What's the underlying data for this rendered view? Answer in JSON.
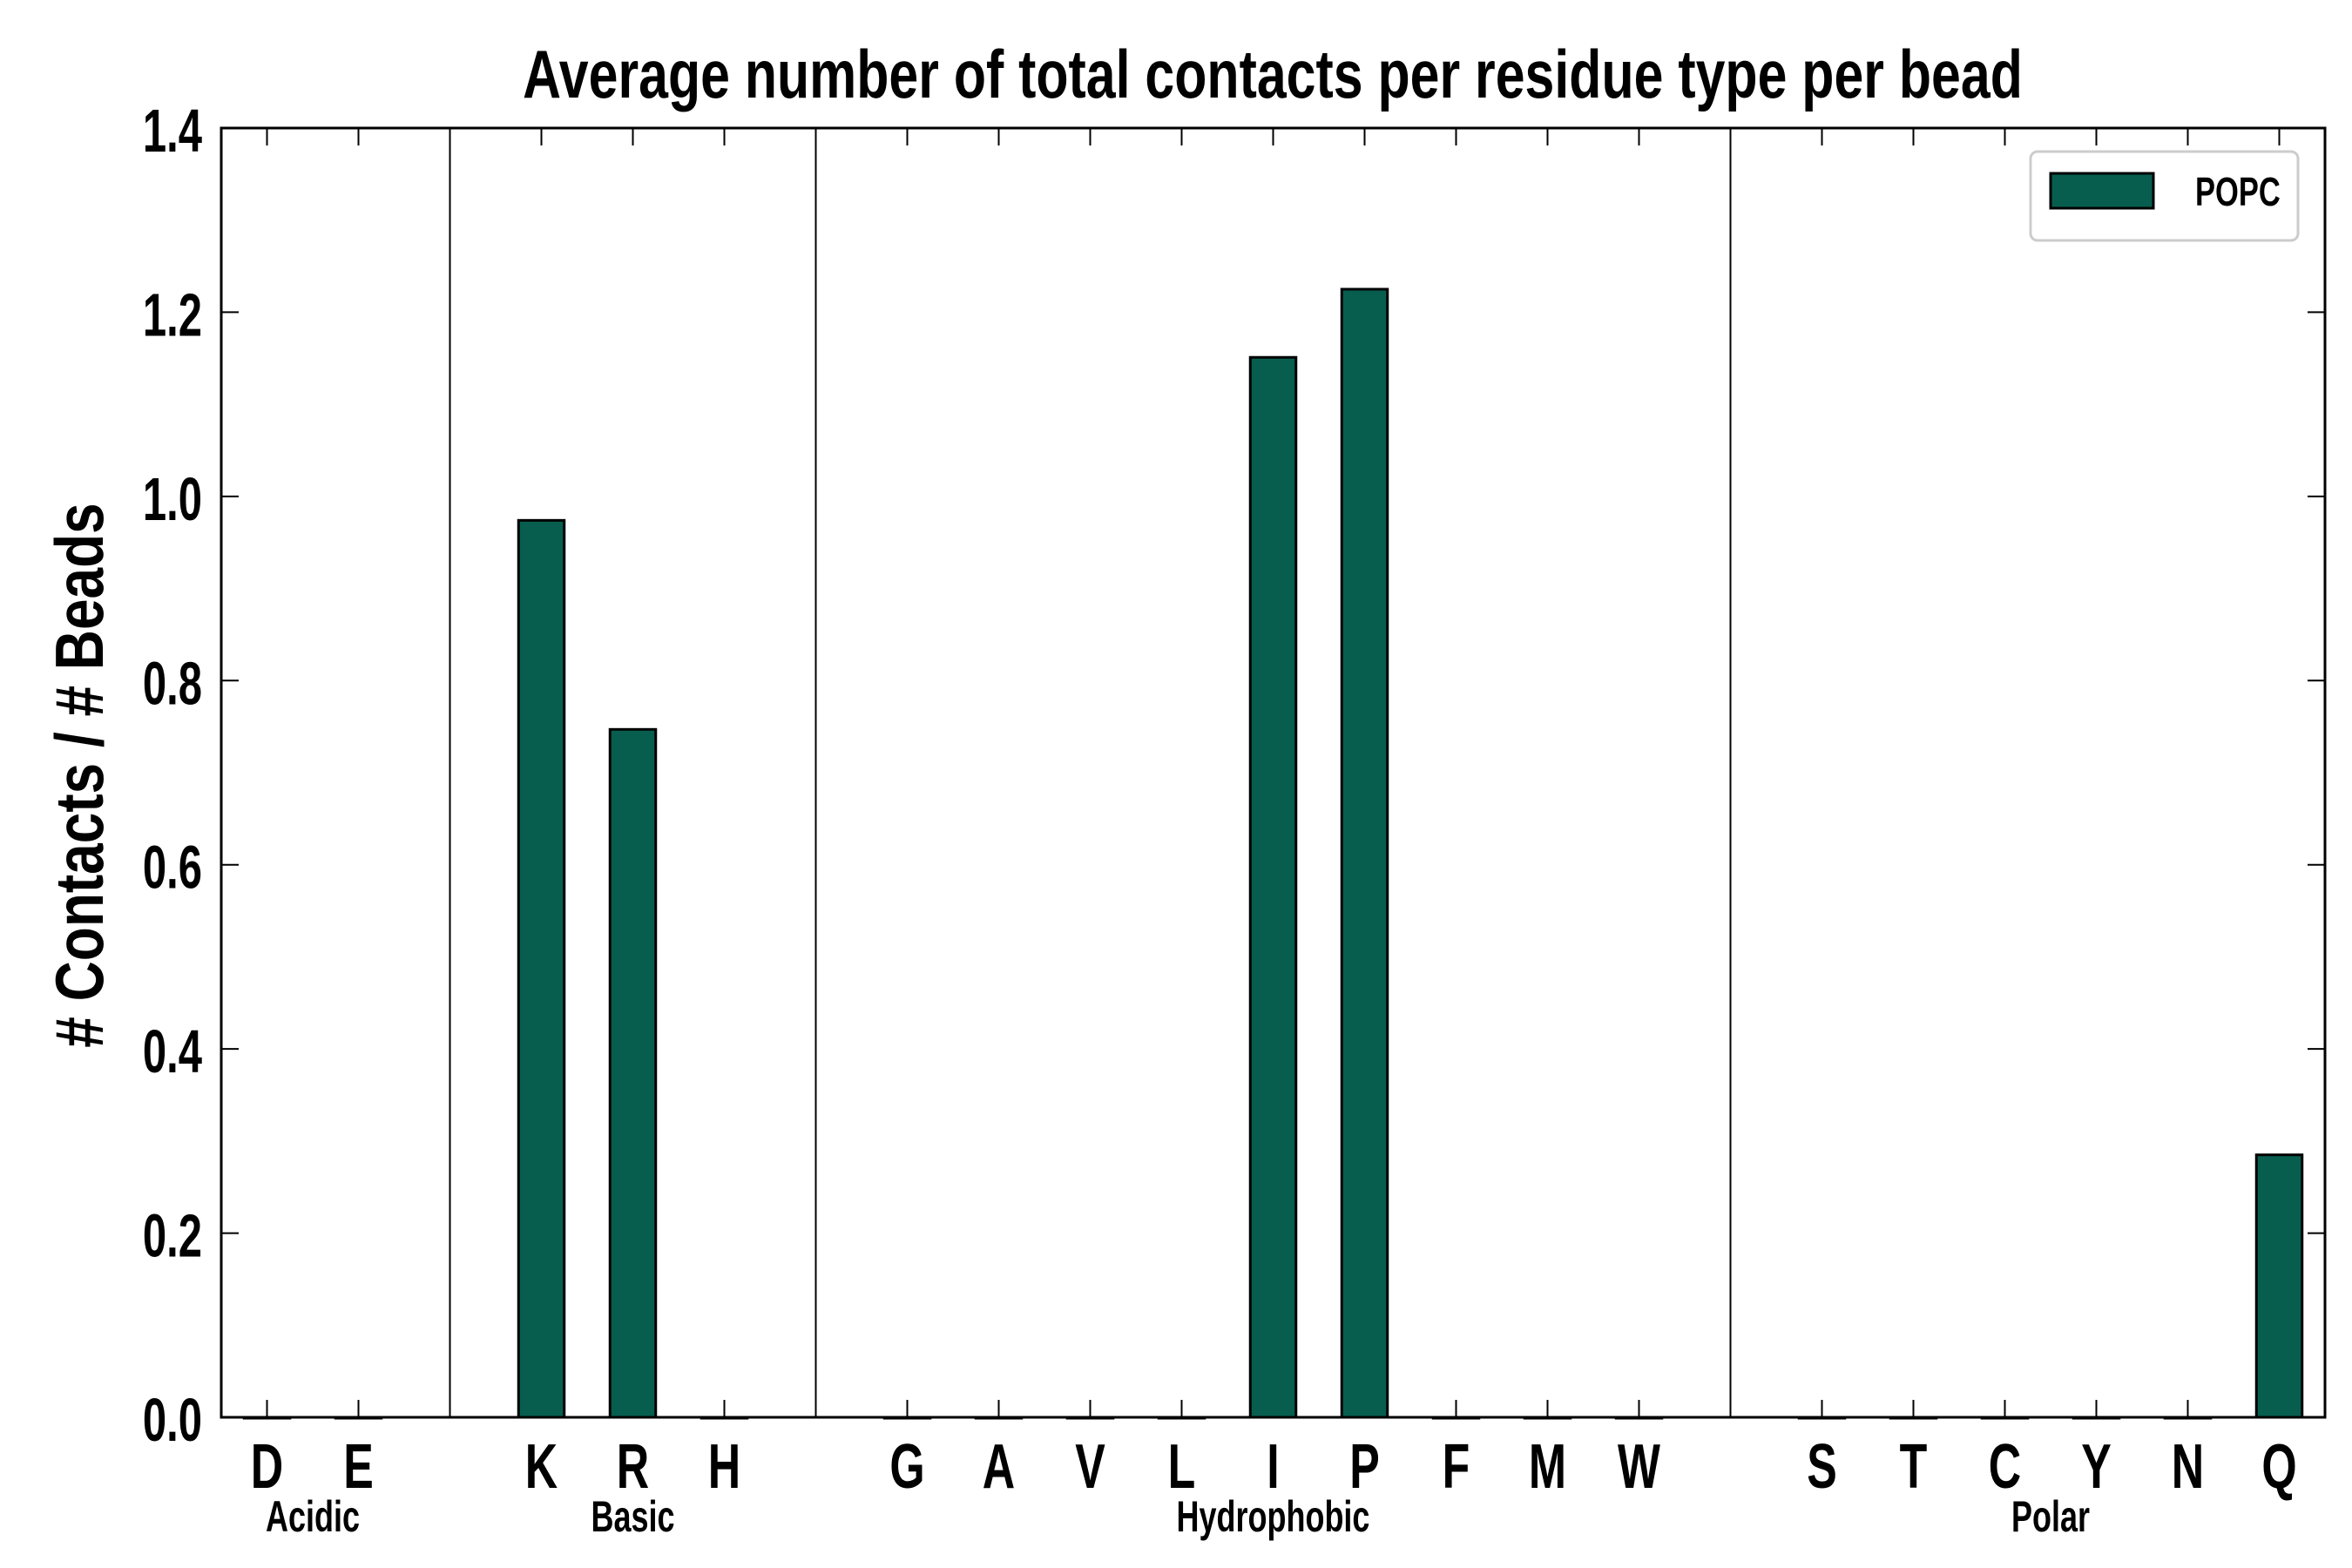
{
  "chart_data": {
    "type": "bar",
    "title": "Average number of total contacts per residue type per bead",
    "xlabel": "",
    "ylabel": "# Contacts / # Beads",
    "ylim": [
      0,
      1.4
    ],
    "yticks": [
      "0.0",
      "0.2",
      "0.4",
      "0.6",
      "0.8",
      "1.0",
      "1.2",
      "1.4"
    ],
    "grid": false,
    "legend": {
      "position": "top-right",
      "entries": [
        "POPC"
      ]
    },
    "bar_color": "#075e4f",
    "slots": [
      "D",
      "E",
      "",
      "K",
      "R",
      "H",
      "",
      "G",
      "A",
      "V",
      "L",
      "I",
      "P",
      "F",
      "M",
      "W",
      "",
      "S",
      "T",
      "C",
      "Y",
      "N",
      "Q"
    ],
    "categories": [
      "D",
      "E",
      "K",
      "R",
      "H",
      "G",
      "A",
      "V",
      "L",
      "I",
      "P",
      "F",
      "M",
      "W",
      "S",
      "T",
      "C",
      "Y",
      "N",
      "Q"
    ],
    "series": [
      {
        "name": "POPC",
        "values": [
          0,
          0,
          0.974,
          0.747,
          0,
          0,
          0,
          0,
          0,
          1.151,
          1.225,
          0,
          0,
          0,
          0,
          0,
          0,
          0,
          0,
          0.285
        ]
      }
    ],
    "groups": [
      {
        "label": "Acidic",
        "first": "D",
        "last": "E"
      },
      {
        "label": "Basic",
        "first": "K",
        "last": "H"
      },
      {
        "label": "Hydrophobic",
        "first": "G",
        "last": "W"
      },
      {
        "label": "Polar",
        "first": "S",
        "last": "Q"
      }
    ],
    "separators_after": [
      "E",
      "H",
      "W"
    ]
  }
}
